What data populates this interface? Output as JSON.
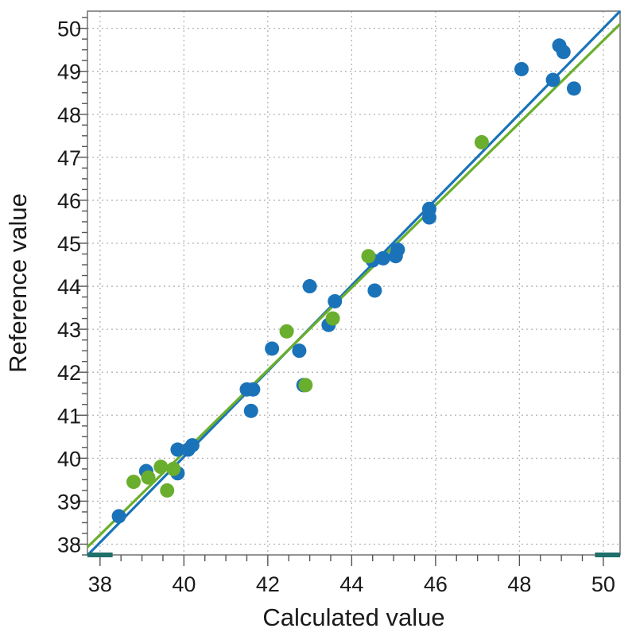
{
  "chart_data": {
    "type": "scatter",
    "title": "",
    "xlabel": "Calculated value",
    "ylabel": "Reference value",
    "xlim": [
      37.7,
      50.4
    ],
    "ylim": [
      37.75,
      50.4
    ],
    "x_ticks": [
      38,
      40,
      42,
      44,
      46,
      48,
      50
    ],
    "y_ticks": [
      38,
      39,
      40,
      41,
      42,
      43,
      44,
      45,
      46,
      47,
      48,
      49,
      50
    ],
    "x_minor_step": 0.5,
    "y_minor_step": 0.25,
    "grid": true,
    "legend": "none",
    "range_markers": [
      {
        "from": 37.7,
        "to": 38.3
      },
      {
        "from": 49.8,
        "to": 50.4
      }
    ],
    "marker_color": "#1f6f6a",
    "series": [
      {
        "color": "#1a73b8",
        "fit_line": {
          "x": [
            37.7,
            50.4
          ],
          "y": [
            37.74,
            50.4
          ]
        },
        "points": [
          {
            "x": 38.45,
            "y": 38.65
          },
          {
            "x": 39.1,
            "y": 39.7
          },
          {
            "x": 39.85,
            "y": 39.65
          },
          {
            "x": 39.85,
            "y": 40.2
          },
          {
            "x": 40.1,
            "y": 40.2
          },
          {
            "x": 40.2,
            "y": 40.3
          },
          {
            "x": 41.5,
            "y": 41.6
          },
          {
            "x": 41.65,
            "y": 41.6
          },
          {
            "x": 41.6,
            "y": 41.1
          },
          {
            "x": 42.1,
            "y": 42.55
          },
          {
            "x": 42.75,
            "y": 42.5
          },
          {
            "x": 42.85,
            "y": 41.7
          },
          {
            "x": 43.0,
            "y": 44.0
          },
          {
            "x": 43.45,
            "y": 43.1
          },
          {
            "x": 43.6,
            "y": 43.65
          },
          {
            "x": 44.5,
            "y": 44.6
          },
          {
            "x": 44.55,
            "y": 43.9
          },
          {
            "x": 44.75,
            "y": 44.65
          },
          {
            "x": 45.05,
            "y": 44.7
          },
          {
            "x": 45.1,
            "y": 44.85
          },
          {
            "x": 45.85,
            "y": 45.8
          },
          {
            "x": 45.85,
            "y": 45.6
          },
          {
            "x": 48.05,
            "y": 49.05
          },
          {
            "x": 48.8,
            "y": 48.8
          },
          {
            "x": 48.95,
            "y": 49.6
          },
          {
            "x": 49.05,
            "y": 49.45
          },
          {
            "x": 49.3,
            "y": 48.6
          }
        ]
      },
      {
        "color": "#6aae2d",
        "fit_line": {
          "x": [
            37.7,
            50.4
          ],
          "y": [
            37.93,
            50.1
          ]
        },
        "points": [
          {
            "x": 38.8,
            "y": 39.45
          },
          {
            "x": 39.15,
            "y": 39.55
          },
          {
            "x": 39.45,
            "y": 39.8
          },
          {
            "x": 39.6,
            "y": 39.25
          },
          {
            "x": 39.75,
            "y": 39.75
          },
          {
            "x": 42.45,
            "y": 42.95
          },
          {
            "x": 42.9,
            "y": 41.7
          },
          {
            "x": 43.55,
            "y": 43.25
          },
          {
            "x": 44.4,
            "y": 44.7
          },
          {
            "x": 47.1,
            "y": 47.35
          }
        ]
      }
    ]
  }
}
